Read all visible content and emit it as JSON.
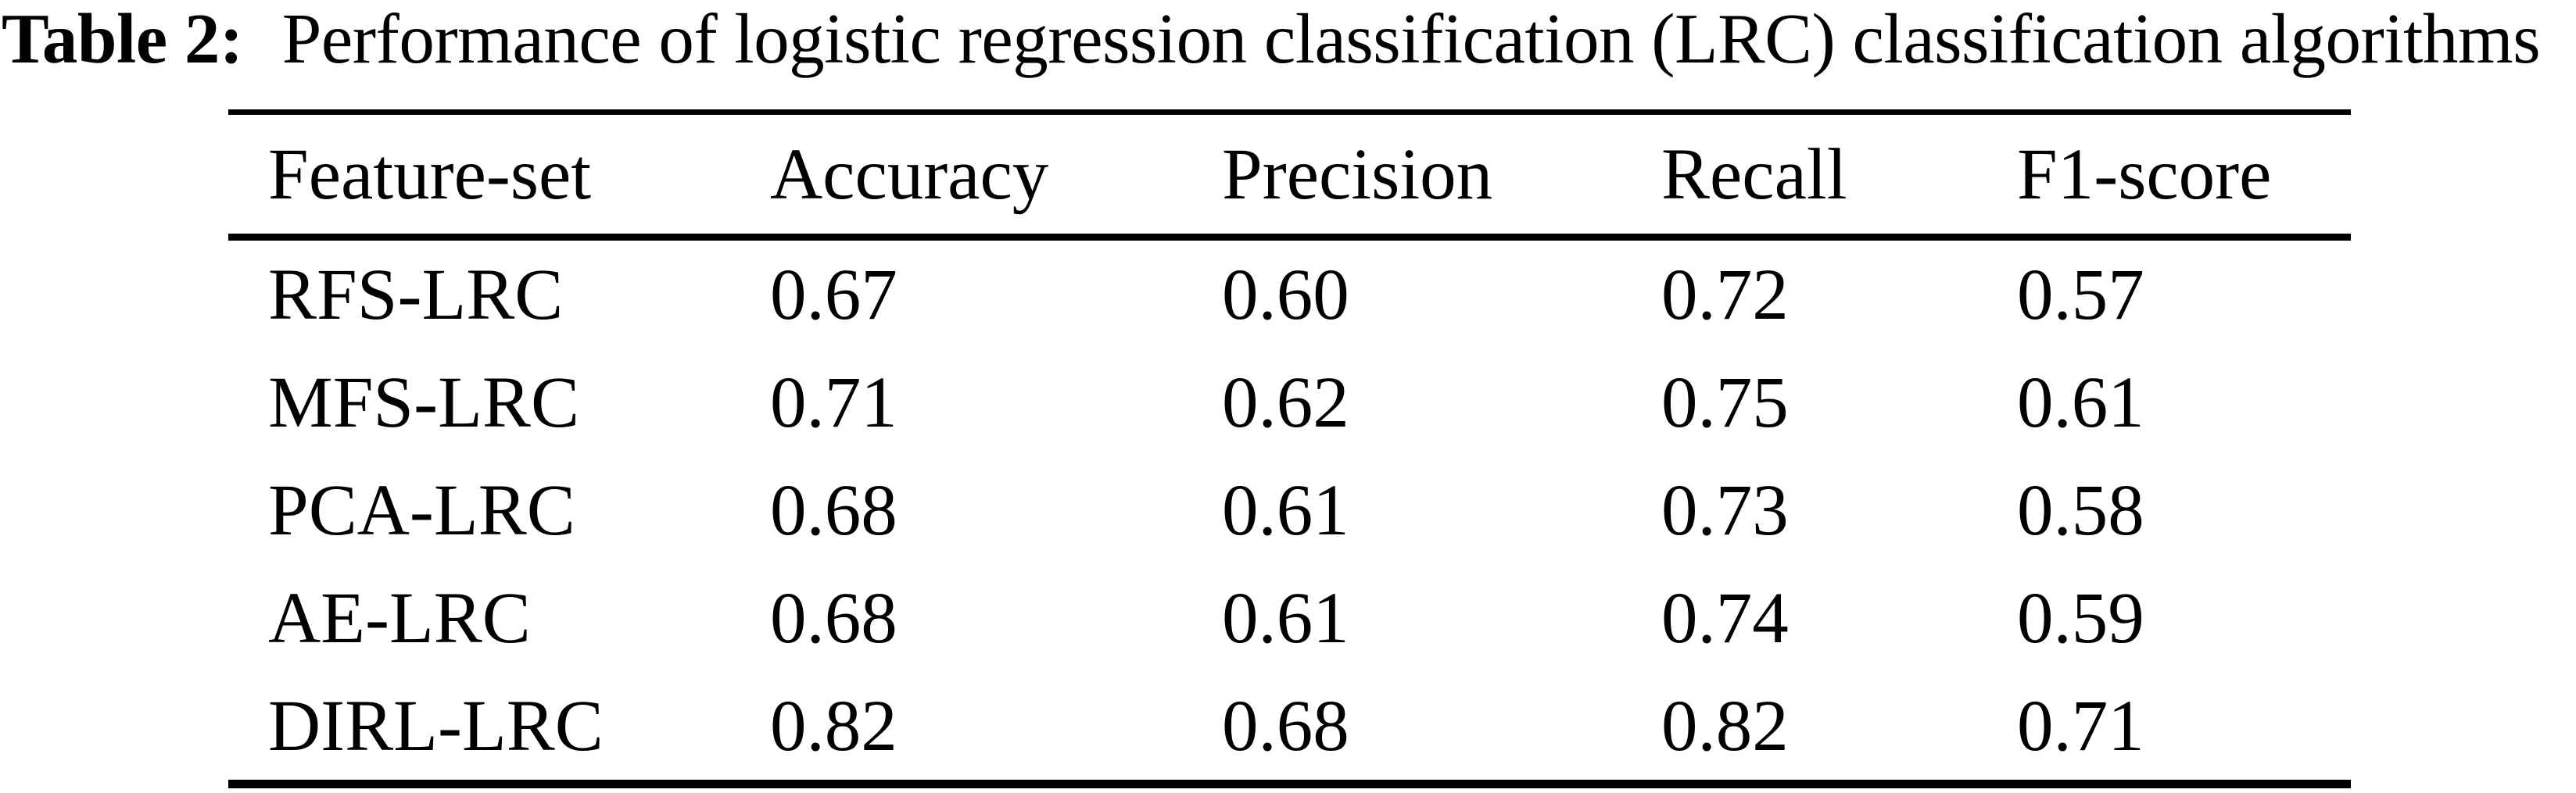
{
  "caption": {
    "label": "Table 2:",
    "text": "Performance of logistic regression classification (LRC) classification algorithms"
  },
  "table": {
    "columns": {
      "feature_set": "Feature-set",
      "accuracy": "Accuracy",
      "precision": "Precision",
      "recall": "Recall",
      "f1_score": "F1-score"
    },
    "rows": [
      {
        "feature_set": "RFS-LRC",
        "accuracy": "0.67",
        "precision": "0.60",
        "recall": "0.72",
        "f1_score": "0.57"
      },
      {
        "feature_set": "MFS-LRC",
        "accuracy": "0.71",
        "precision": "0.62",
        "recall": "0.75",
        "f1_score": "0.61"
      },
      {
        "feature_set": "PCA-LRC",
        "accuracy": "0.68",
        "precision": "0.61",
        "recall": "0.73",
        "f1_score": "0.58"
      },
      {
        "feature_set": "AE-LRC",
        "accuracy": "0.68",
        "precision": "0.61",
        "recall": "0.74",
        "f1_score": "0.59"
      },
      {
        "feature_set": "DIRL-LRC",
        "accuracy": "0.82",
        "precision": "0.68",
        "recall": "0.82",
        "f1_score": "0.71"
      }
    ]
  },
  "colors": {
    "text": "#000000",
    "background": "#ffffff",
    "rule": "#000000"
  },
  "chart_data": {
    "type": "table",
    "title": "Table 2: Performance of logistic regression classification (LRC) classification algorithms",
    "columns": [
      "Feature-set",
      "Accuracy",
      "Precision",
      "Recall",
      "F1-score"
    ],
    "rows": [
      [
        "RFS-LRC",
        0.67,
        0.6,
        0.72,
        0.57
      ],
      [
        "MFS-LRC",
        0.71,
        0.62,
        0.75,
        0.61
      ],
      [
        "PCA-LRC",
        0.68,
        0.61,
        0.73,
        0.58
      ],
      [
        "AE-LRC",
        0.68,
        0.61,
        0.74,
        0.59
      ],
      [
        "DIRL-LRC",
        0.82,
        0.68,
        0.82,
        0.71
      ]
    ]
  }
}
